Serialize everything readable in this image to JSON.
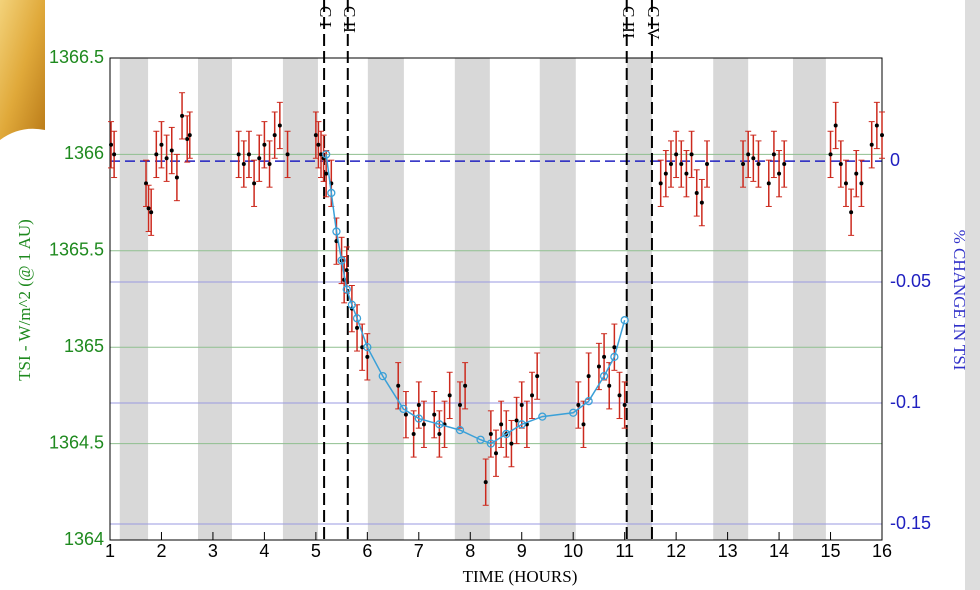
{
  "chart_data": {
    "type": "scatter",
    "xlabel": "TIME (HOURS)",
    "ylabel": "TSI - W/m^2 (@ 1 AU)",
    "y2label": "% CHANGE IN TSI",
    "xlim": [
      1,
      16
    ],
    "ylim": [
      1364,
      1366.5
    ],
    "y2lim": [
      -0.1566,
      0.0426
    ],
    "xticks": [
      1,
      2,
      3,
      4,
      5,
      6,
      7,
      8,
      9,
      10,
      11,
      12,
      13,
      14,
      15,
      16
    ],
    "yticks": [
      1364,
      1364.5,
      1365,
      1365.5,
      1366,
      1366.5
    ],
    "y2ticks": [
      0,
      -0.05,
      -0.1,
      -0.15
    ],
    "shaded": [
      [
        1.19,
        1.74
      ],
      [
        2.71,
        3.37
      ],
      [
        4.36,
        5.04
      ],
      [
        6.01,
        6.71
      ],
      [
        7.7,
        8.38
      ],
      [
        9.35,
        10.05
      ],
      [
        11.04,
        11.53
      ],
      [
        12.72,
        13.4
      ],
      [
        14.27,
        14.91
      ]
    ],
    "contacts": [
      {
        "label": "C I",
        "x": 5.16
      },
      {
        "label": "C II",
        "x": 5.62
      },
      {
        "label": "C III",
        "x": 11.04
      },
      {
        "label": "C IV",
        "x": 11.53
      }
    ],
    "series": [
      {
        "color": "#000000",
        "error_color": "#cc2a1e",
        "error": 0.12,
        "x": [
          1.02,
          1.08,
          1.7,
          1.75,
          1.8,
          1.9,
          2.0,
          2.1,
          2.2,
          2.3,
          2.4,
          2.5,
          2.55,
          3.5,
          3.6,
          3.7,
          3.8,
          3.9,
          4.0,
          4.1,
          4.2,
          4.3,
          4.45,
          5.0,
          5.05,
          5.1,
          5.15,
          5.2,
          5.3,
          5.4,
          5.5,
          5.55,
          5.6,
          5.7,
          5.8,
          5.9,
          6.0,
          6.6,
          6.75,
          6.9,
          7.0,
          7.1,
          7.3,
          7.4,
          7.5,
          7.6,
          7.8,
          7.9,
          8.3,
          8.4,
          8.5,
          8.6,
          8.7,
          8.8,
          8.9,
          9.0,
          9.1,
          9.2,
          9.3,
          10.1,
          10.2,
          10.3,
          10.5,
          10.6,
          10.7,
          10.8,
          10.9,
          11.0,
          11.7,
          11.8,
          11.9,
          12.0,
          12.1,
          12.2,
          12.3,
          12.4,
          12.5,
          12.6,
          13.3,
          13.4,
          13.5,
          13.6,
          13.8,
          13.9,
          14.0,
          14.1,
          15.0,
          15.1,
          15.2,
          15.3,
          15.4,
          15.5,
          15.6,
          15.8,
          15.9,
          16.0
        ],
        "values": [
          1366.05,
          1366.0,
          1365.85,
          1365.72,
          1365.7,
          1366.0,
          1366.05,
          1365.98,
          1366.02,
          1365.88,
          1366.2,
          1366.08,
          1366.1,
          1366.0,
          1365.95,
          1366.0,
          1365.85,
          1365.98,
          1366.05,
          1365.95,
          1366.1,
          1366.15,
          1366.0,
          1366.1,
          1366.05,
          1366.0,
          1365.98,
          1365.9,
          1365.85,
          1365.55,
          1365.45,
          1365.35,
          1365.4,
          1365.2,
          1365.1,
          1365.0,
          1364.95,
          1364.8,
          1364.65,
          1364.55,
          1364.7,
          1364.6,
          1364.65,
          1364.55,
          1364.6,
          1364.75,
          1364.7,
          1364.8,
          1364.3,
          1364.55,
          1364.45,
          1364.6,
          1364.55,
          1364.5,
          1364.62,
          1364.7,
          1364.6,
          1364.75,
          1364.85,
          1364.7,
          1364.6,
          1364.85,
          1364.9,
          1364.95,
          1364.8,
          1365.0,
          1364.75,
          1364.7,
          1365.85,
          1365.9,
          1365.95,
          1366.0,
          1365.95,
          1365.9,
          1366.0,
          1365.8,
          1365.75,
          1365.95,
          1365.95,
          1366.0,
          1365.98,
          1365.95,
          1365.85,
          1366.0,
          1365.9,
          1365.95,
          1366.0,
          1366.15,
          1365.95,
          1365.85,
          1365.7,
          1365.9,
          1365.85,
          1366.05,
          1366.15,
          1366.1
        ]
      },
      {
        "color": "#3aa0d8",
        "x": [
          5.2,
          5.3,
          5.4,
          5.5,
          5.6,
          5.7,
          5.8,
          6.0,
          6.3,
          6.7,
          7.0,
          7.4,
          7.8,
          8.2,
          8.4,
          8.7,
          9.0,
          9.4,
          10.0,
          10.3,
          10.6,
          10.8,
          11.0
        ],
        "values": [
          1366.0,
          1365.8,
          1365.6,
          1365.45,
          1365.3,
          1365.22,
          1365.15,
          1365.0,
          1364.85,
          1364.68,
          1364.63,
          1364.6,
          1364.57,
          1364.52,
          1364.5,
          1364.55,
          1364.6,
          1364.64,
          1364.66,
          1364.72,
          1364.85,
          1364.95,
          1365.14
        ]
      }
    ]
  }
}
